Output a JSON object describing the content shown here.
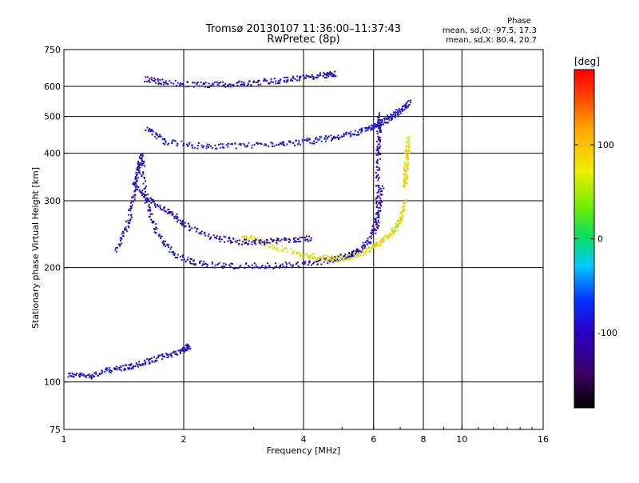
{
  "header": {
    "title_line1": "Tromsø 20130107 11:36:00–11:37:43",
    "title_line2": "RwPretec (8p)"
  },
  "phase_box": {
    "title": "Phase",
    "line_o": "mean, sd,O: -97.5, 17.3",
    "line_x": "mean, sd,X: 80.4, 20.7"
  },
  "colorbar": {
    "label": "[deg]",
    "ticks": [
      "100",
      "0",
      "-100"
    ],
    "tick_values": [
      100,
      0,
      -100
    ],
    "range": [
      -180,
      180
    ]
  },
  "chart_data": {
    "type": "scatter",
    "title": "Tromsø 20130107 11:36:00–11:37:43",
    "subtitle": "RwPretec (8p)",
    "xlabel": "Frequency [MHz]",
    "ylabel": "Stationary phase Virtual Height [km]",
    "xscale": "log",
    "yscale": "log",
    "xlim": [
      1,
      16
    ],
    "ylim": [
      75,
      750
    ],
    "xticks": [
      1,
      2,
      4,
      6,
      8,
      10,
      16
    ],
    "xtick_labels": [
      "1",
      "2",
      "4",
      "6",
      "8",
      "10",
      "16"
    ],
    "yticks": [
      75,
      100,
      200,
      300,
      400,
      500,
      600,
      750
    ],
    "ytick_labels": [
      "75",
      "100",
      "200",
      "300",
      "400",
      "500",
      "600",
      "750"
    ],
    "grid": true,
    "color_scale": "rainbow",
    "color_variable_range": [
      -180,
      180
    ],
    "color_data_description": "Phase in degrees",
    "echo_traces": [
      {
        "id": "E_region_low",
        "f": [
          1.02,
          1.15,
          1.3,
          1.45,
          1.6,
          1.8,
          2.0,
          2.05
        ],
        "h": [
          105,
          104,
          108,
          110,
          113,
          118,
          122,
          125
        ],
        "phase": -95
      },
      {
        "id": "F_O_lower",
        "f": [
          1.35,
          1.45,
          1.5,
          1.53,
          1.56,
          1.6,
          1.7,
          1.9,
          2.2,
          2.7,
          3.3,
          4.0,
          4.6,
          5.1,
          5.4,
          5.8,
          6.1,
          6.3
        ],
        "h": [
          225,
          265,
          320,
          360,
          400,
          300,
          250,
          215,
          205,
          203,
          203,
          205,
          210,
          215,
          220,
          235,
          270,
          330
        ],
        "phase": -100
      },
      {
        "id": "F_O_vertical",
        "f": [
          6.1,
          6.12,
          6.14,
          6.16,
          6.2
        ],
        "h": [
          250,
          320,
          400,
          460,
          510
        ],
        "phase": -110
      },
      {
        "id": "F_X_lower",
        "f": [
          2.8,
          3.2,
          3.8,
          4.3,
          4.9,
          5.5,
          6.0,
          6.4,
          6.8,
          7.0,
          7.2
        ],
        "h": [
          245,
          232,
          220,
          214,
          212,
          218,
          228,
          240,
          255,
          270,
          300
        ],
        "phase": 80
      },
      {
        "id": "F_X_vertical",
        "f": [
          7.15,
          7.2,
          7.25,
          7.3
        ],
        "h": [
          330,
          360,
          400,
          440
        ],
        "phase": 82
      },
      {
        "id": "F2_second_hop",
        "f": [
          1.6,
          1.8,
          2.2,
          2.7,
          3.4,
          4.0,
          4.6,
          5.2,
          5.8,
          6.2,
          6.6,
          7.0,
          7.4
        ],
        "h": [
          470,
          430,
          420,
          420,
          425,
          430,
          440,
          450,
          465,
          480,
          500,
          520,
          550
        ],
        "phase": -90
      },
      {
        "id": "F2_third_hop",
        "f": [
          1.6,
          1.8,
          2.2,
          2.6,
          3.0,
          3.5,
          4.0,
          4.5,
          4.8
        ],
        "h": [
          630,
          615,
          608,
          610,
          618,
          625,
          635,
          645,
          650
        ],
        "phase": -100
      },
      {
        "id": "spread_F_interior",
        "f": [
          1.5,
          1.65,
          1.85,
          2.0,
          2.4,
          2.8,
          3.2,
          3.7,
          4.2
        ],
        "h": [
          330,
          300,
          280,
          260,
          240,
          235,
          235,
          238,
          240
        ],
        "phase": -105
      }
    ]
  }
}
